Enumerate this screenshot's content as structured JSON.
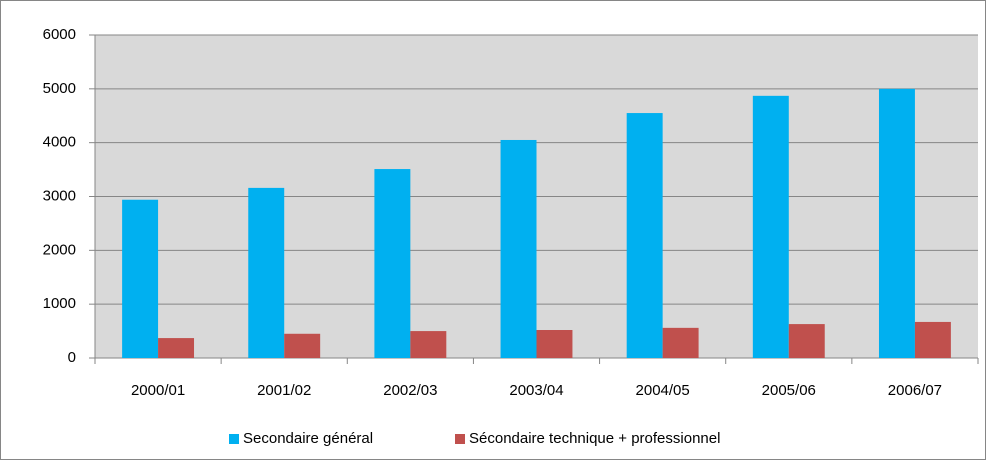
{
  "chart_data": {
    "type": "bar",
    "categories": [
      "2000/01",
      "2001/02",
      "2002/03",
      "2003/04",
      "2004/05",
      "2005/06",
      "2006/07"
    ],
    "series": [
      {
        "name": "Secondaire général",
        "color": "#00b0f0",
        "values": [
          2940,
          3160,
          3510,
          4050,
          4550,
          4870,
          5000
        ]
      },
      {
        "name": "Sécondaire technique + professionnel",
        "color": "#c0504d",
        "values": [
          370,
          450,
          500,
          520,
          560,
          630,
          670
        ]
      }
    ],
    "ylim": [
      0,
      6000
    ],
    "yticks": [
      0,
      1000,
      2000,
      3000,
      4000,
      5000,
      6000
    ],
    "grid": true,
    "legend": "bottom"
  }
}
